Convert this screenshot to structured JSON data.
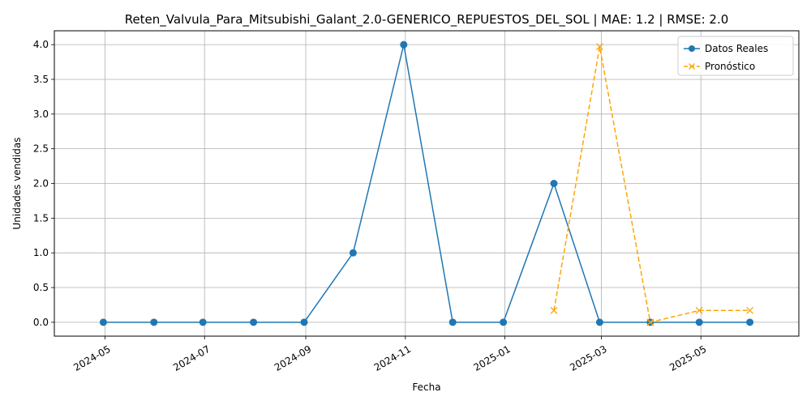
{
  "chart_data": {
    "type": "line",
    "title": "Reten_Valvula_Para_Mitsubishi_Galant_2.0-GENERICO_REPUESTOS_DEL_SOL | MAE: 1.2 | RMSE: 2.0",
    "xlabel": "Fecha",
    "ylabel": "Unidades vendidas",
    "ylim": [
      -0.2,
      4.2
    ],
    "xlim": [
      "2024-03-31",
      "2025-06-30"
    ],
    "grid": true,
    "legend_position": "top-right",
    "x_ticks": [
      "2024-05",
      "2024-07",
      "2024-09",
      "2024-11",
      "2025-01",
      "2025-03",
      "2025-05"
    ],
    "y_ticks": [
      "0.0",
      "0.5",
      "1.0",
      "1.5",
      "2.0",
      "2.5",
      "3.0",
      "3.5",
      "4.0"
    ],
    "series": [
      {
        "name": "Datos Reales",
        "color": "#1f77b4",
        "style": "solid",
        "marker": "circle",
        "x": [
          "2024-04-30",
          "2024-05-31",
          "2024-06-30",
          "2024-07-31",
          "2024-08-31",
          "2024-09-30",
          "2024-10-31",
          "2024-11-30",
          "2024-12-31",
          "2025-01-31",
          "2025-02-28",
          "2025-03-31",
          "2025-04-30",
          "2025-05-31"
        ],
        "values": [
          0,
          0,
          0,
          0,
          0,
          1,
          4,
          0,
          0,
          2,
          0,
          0,
          0,
          0
        ]
      },
      {
        "name": "Pronóstico",
        "color": "#ffa500",
        "style": "dashed",
        "marker": "x",
        "x": [
          "2025-01-31",
          "2025-02-28",
          "2025-03-31",
          "2025-04-30",
          "2025-05-31"
        ],
        "values": [
          0.17,
          3.97,
          0.0,
          0.17,
          0.17
        ]
      }
    ]
  }
}
